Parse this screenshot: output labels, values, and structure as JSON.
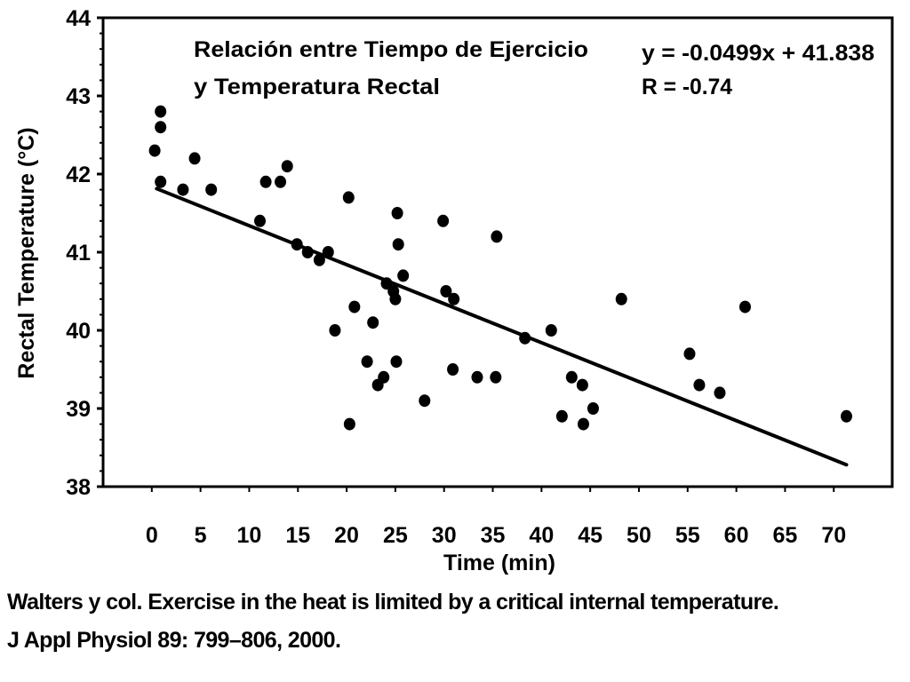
{
  "chart_data": {
    "type": "scatter",
    "title_lines": [
      "Relación entre Tiempo de Ejercicio",
      "y Temperatura Rectal"
    ],
    "annotations": [
      "y = -0.0499x + 41.838",
      "R = -0.74"
    ],
    "xlabel": "Time (min)",
    "ylabel": "Rectal Temperature (°C)",
    "xlim": [
      -5,
      76
    ],
    "ylim": [
      38,
      44
    ],
    "x_ticks": [
      "0",
      "5",
      "10",
      "15",
      "20",
      "25",
      "30",
      "35",
      "40",
      "45",
      "50",
      "55",
      "60",
      "65",
      "70"
    ],
    "y_ticks": [
      "38",
      "39",
      "40",
      "41",
      "42",
      "43",
      "44"
    ],
    "trendline": {
      "x_start": 0.5,
      "x_end": 71.3,
      "slope": -0.0499,
      "intercept": 41.838
    },
    "points": [
      [
        0.3,
        42.3
      ],
      [
        0.9,
        42.8
      ],
      [
        0.9,
        42.6
      ],
      [
        0.9,
        41.9
      ],
      [
        3.2,
        41.8
      ],
      [
        4.4,
        42.2
      ],
      [
        6.1,
        41.8
      ],
      [
        11.1,
        41.4
      ],
      [
        11.7,
        41.9
      ],
      [
        13.2,
        41.9
      ],
      [
        13.9,
        42.1
      ],
      [
        14.9,
        41.1
      ],
      [
        16.0,
        41.0
      ],
      [
        17.2,
        40.9
      ],
      [
        18.1,
        41.0
      ],
      [
        18.8,
        40.0
      ],
      [
        20.2,
        41.7
      ],
      [
        20.3,
        38.8
      ],
      [
        20.8,
        40.3
      ],
      [
        22.1,
        39.6
      ],
      [
        22.7,
        40.1
      ],
      [
        23.2,
        39.3
      ],
      [
        23.8,
        39.4
      ],
      [
        24.1,
        40.6
      ],
      [
        24.8,
        40.5
      ],
      [
        25.0,
        40.4
      ],
      [
        25.1,
        39.6
      ],
      [
        25.2,
        41.5
      ],
      [
        25.3,
        41.1
      ],
      [
        25.8,
        40.7
      ],
      [
        28.0,
        39.1
      ],
      [
        29.9,
        41.4
      ],
      [
        30.2,
        40.5
      ],
      [
        30.9,
        39.5
      ],
      [
        31.0,
        40.4
      ],
      [
        33.4,
        39.4
      ],
      [
        35.3,
        39.4
      ],
      [
        35.4,
        41.2
      ],
      [
        38.3,
        39.9
      ],
      [
        41.0,
        40.0
      ],
      [
        42.1,
        38.9
      ],
      [
        43.1,
        39.4
      ],
      [
        44.2,
        39.3
      ],
      [
        44.3,
        38.8
      ],
      [
        45.3,
        39.0
      ],
      [
        48.2,
        40.4
      ],
      [
        55.2,
        39.7
      ],
      [
        56.2,
        39.3
      ],
      [
        58.3,
        39.2
      ],
      [
        60.9,
        40.3
      ],
      [
        71.3,
        38.9
      ]
    ],
    "grid": false
  },
  "caption": {
    "line1": "Walters y col. Exercise in the heat is limited by a critical internal temperature.",
    "line2": "J Appl Physiol 89: 799–806, 2000."
  }
}
